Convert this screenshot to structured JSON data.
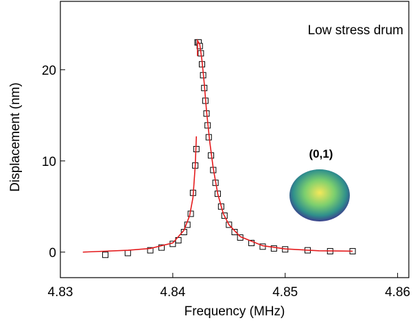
{
  "chart_data": {
    "type": "scatter",
    "xlabel": "Frequency (MHz)",
    "ylabel": "Displacement (nm)",
    "annotations": [
      "Low stress drum",
      "(0,1)"
    ],
    "xlim": [
      4.83,
      4.861
    ],
    "xticks": [
      4.83,
      4.84,
      4.85,
      4.86
    ],
    "ylim": [
      -2.8,
      27.5
    ],
    "yticks": [
      0,
      10,
      20
    ],
    "series": [
      {
        "type": "scatter",
        "color": "#000000",
        "x": [
          4.834,
          4.836,
          4.838,
          4.839,
          4.84,
          4.8405,
          4.841,
          4.8413,
          4.8416,
          4.8418,
          4.842,
          4.8421,
          4.8422,
          4.8423,
          4.8424,
          4.8425,
          4.8426,
          4.8427,
          4.8428,
          4.8429,
          4.843,
          4.8431,
          4.8432,
          4.8434,
          4.8436,
          4.8438,
          4.844,
          4.8443,
          4.8446,
          4.845,
          4.8455,
          4.846,
          4.847,
          4.848,
          4.849,
          4.85,
          4.852,
          4.854,
          4.856
        ],
        "values": [
          -0.3,
          -0.1,
          0.2,
          0.5,
          0.9,
          1.3,
          2.2,
          3.0,
          4.2,
          6.5,
          9.5,
          11.3,
          23.0,
          23.0,
          22.6,
          21.8,
          20.6,
          19.4,
          18.0,
          16.6,
          15.2,
          13.9,
          12.6,
          10.6,
          9.0,
          7.6,
          6.4,
          5.0,
          4.0,
          3.0,
          2.2,
          1.6,
          1.0,
          0.6,
          0.4,
          0.3,
          0.2,
          0.1,
          0.1
        ]
      },
      {
        "type": "line",
        "color": "#e41a1c",
        "x": [
          4.832,
          4.836,
          4.838,
          4.84,
          4.841,
          4.8415,
          4.8418,
          4.842,
          4.8421,
          4.8421,
          4.8422,
          4.8422,
          4.8424,
          4.8426,
          4.8428,
          4.843,
          4.8433,
          4.8436,
          4.844,
          4.8445,
          4.845,
          4.846,
          4.848,
          4.85,
          4.853,
          4.856
        ],
        "values": [
          0.0,
          0.2,
          0.4,
          1.0,
          2.4,
          4.0,
          6.0,
          9.5,
          12.7,
          null,
          21.5,
          23.2,
          22.8,
          21.0,
          18.5,
          15.5,
          12.0,
          9.2,
          6.4,
          4.2,
          3.0,
          1.7,
          0.7,
          0.35,
          0.15,
          0.1
        ]
      }
    ]
  }
}
